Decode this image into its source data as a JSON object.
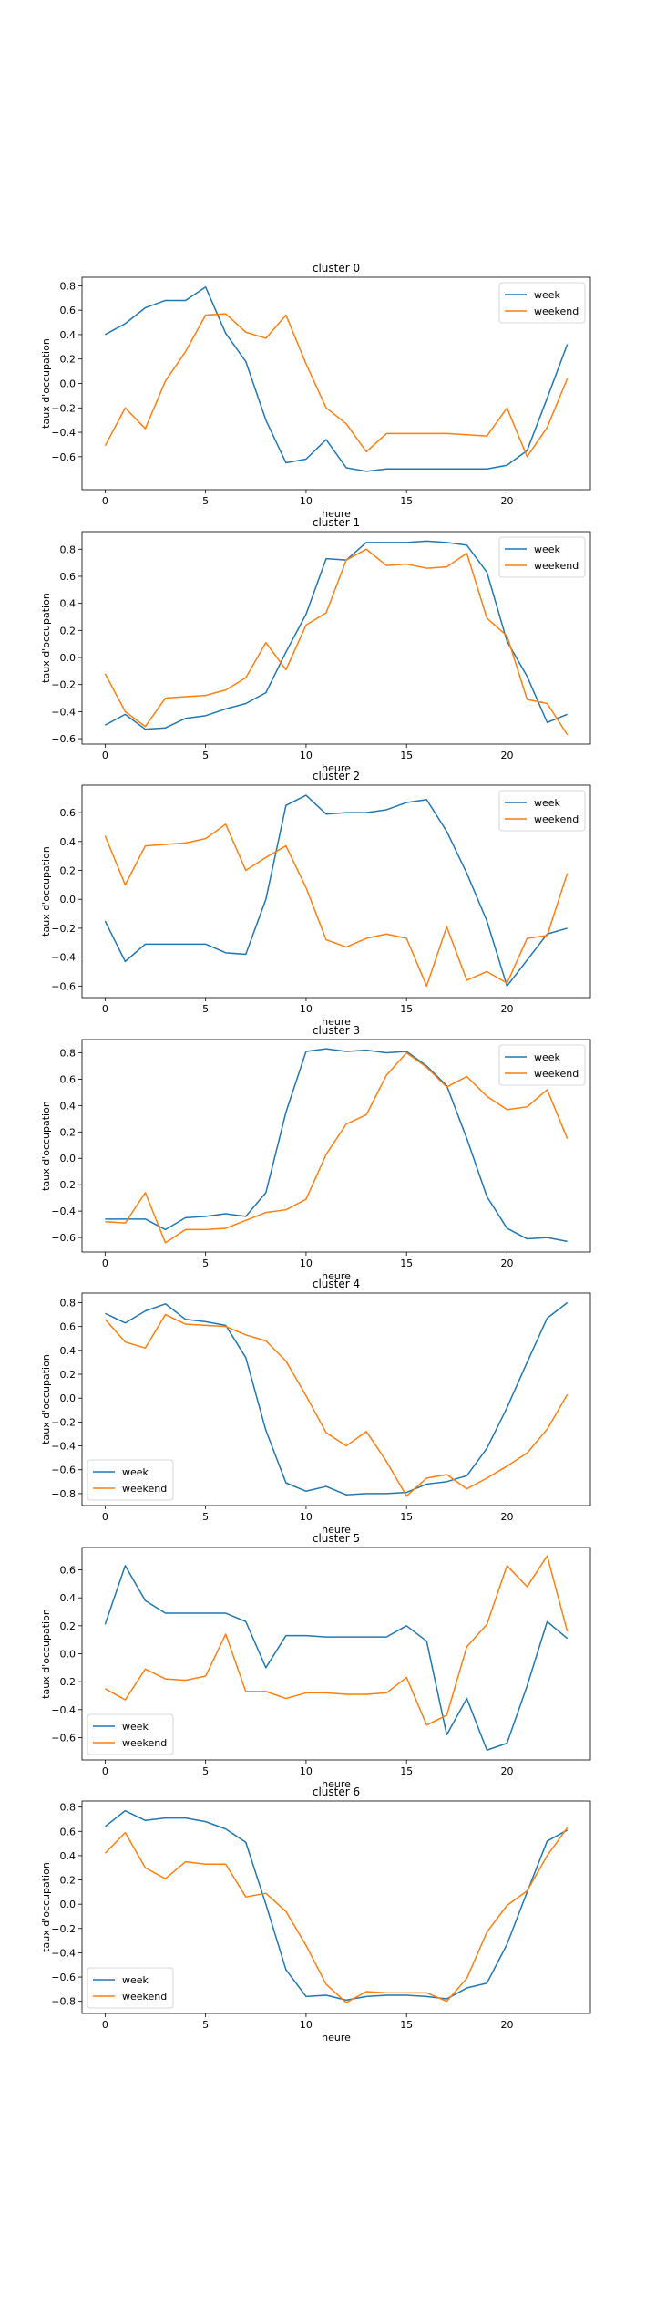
{
  "figure": {
    "background": "#ffffff"
  },
  "chart_data": [
    {
      "type": "line",
      "title": "cluster 0",
      "xlabel": "heure",
      "ylabel": "taux d'occupation",
      "x": [
        0,
        1,
        2,
        3,
        4,
        5,
        6,
        7,
        8,
        9,
        10,
        11,
        12,
        13,
        14,
        15,
        16,
        17,
        18,
        19,
        20,
        21,
        22,
        23
      ],
      "xlim": [
        -1.15,
        24.15
      ],
      "ylim": [
        -0.87,
        0.87
      ],
      "xticks": [
        0,
        5,
        10,
        15,
        20
      ],
      "yticks": [
        -0.6,
        -0.4,
        -0.2,
        0.0,
        0.2,
        0.4,
        0.6,
        0.8
      ],
      "ytick_labels": [
        "−0.6",
        "−0.4",
        "−0.2",
        "0.0",
        "0.2",
        "0.4",
        "0.6",
        "0.8"
      ],
      "legend": "upper right",
      "grid": false,
      "series": [
        {
          "name": "week",
          "color": "#1f77b4",
          "values": [
            0.4,
            0.49,
            0.62,
            0.68,
            0.68,
            0.79,
            0.41,
            0.18,
            -0.3,
            -0.65,
            -0.62,
            -0.46,
            -0.69,
            -0.72,
            -0.7,
            -0.7,
            -0.7,
            -0.7,
            -0.7,
            -0.7,
            -0.67,
            -0.55,
            -0.12,
            0.32
          ]
        },
        {
          "name": "weekend",
          "color": "#ff7f0e",
          "values": [
            -0.51,
            -0.2,
            -0.37,
            0.02,
            0.26,
            0.56,
            0.57,
            0.42,
            0.37,
            0.56,
            0.16,
            -0.2,
            -0.33,
            -0.56,
            -0.41,
            -0.41,
            -0.41,
            -0.41,
            -0.42,
            -0.43,
            -0.2,
            -0.6,
            -0.36,
            0.04
          ]
        }
      ]
    },
    {
      "type": "line",
      "title": "cluster 1",
      "xlabel": "heure",
      "ylabel": "taux d'occupation",
      "x": [
        0,
        1,
        2,
        3,
        4,
        5,
        6,
        7,
        8,
        9,
        10,
        11,
        12,
        13,
        14,
        15,
        16,
        17,
        18,
        19,
        20,
        21,
        22,
        23
      ],
      "xlim": [
        -1.15,
        24.15
      ],
      "ylim": [
        -0.64,
        0.93
      ],
      "xticks": [
        0,
        5,
        10,
        15,
        20
      ],
      "yticks": [
        -0.6,
        -0.4,
        -0.2,
        0.0,
        0.2,
        0.4,
        0.6,
        0.8
      ],
      "ytick_labels": [
        "−0.6",
        "−0.4",
        "−0.2",
        "0.0",
        "0.2",
        "0.4",
        "0.6",
        "0.8"
      ],
      "legend": "upper right",
      "grid": false,
      "series": [
        {
          "name": "week",
          "color": "#1f77b4",
          "values": [
            -0.5,
            -0.42,
            -0.53,
            -0.52,
            -0.45,
            -0.43,
            -0.38,
            -0.34,
            -0.26,
            0.04,
            0.32,
            0.73,
            0.72,
            0.85,
            0.85,
            0.85,
            0.86,
            0.85,
            0.83,
            0.63,
            0.12,
            -0.14,
            -0.48,
            -0.42
          ]
        },
        {
          "name": "weekend",
          "color": "#ff7f0e",
          "values": [
            -0.12,
            -0.4,
            -0.51,
            -0.3,
            -0.29,
            -0.28,
            -0.24,
            -0.15,
            0.11,
            -0.09,
            0.24,
            0.33,
            0.72,
            0.8,
            0.68,
            0.69,
            0.66,
            0.67,
            0.77,
            0.29,
            0.16,
            -0.31,
            -0.34,
            -0.57
          ]
        }
      ]
    },
    {
      "type": "line",
      "title": "cluster 2",
      "xlabel": "heure",
      "ylabel": "taux d'occupation",
      "x": [
        0,
        1,
        2,
        3,
        4,
        5,
        6,
        7,
        8,
        9,
        10,
        11,
        12,
        13,
        14,
        15,
        16,
        17,
        18,
        19,
        20,
        21,
        22,
        23
      ],
      "xlim": [
        -1.15,
        24.15
      ],
      "ylim": [
        -0.68,
        0.79
      ],
      "xticks": [
        0,
        5,
        10,
        15,
        20
      ],
      "yticks": [
        -0.6,
        -0.4,
        -0.2,
        0.0,
        0.2,
        0.4,
        0.6
      ],
      "ytick_labels": [
        "−0.6",
        "−0.4",
        "−0.2",
        "0.0",
        "0.2",
        "0.4",
        "0.6"
      ],
      "legend": "upper right",
      "grid": false,
      "series": [
        {
          "name": "week",
          "color": "#1f77b4",
          "values": [
            -0.15,
            -0.43,
            -0.31,
            -0.31,
            -0.31,
            -0.31,
            -0.37,
            -0.38,
            0.0,
            0.65,
            0.72,
            0.59,
            0.6,
            0.6,
            0.62,
            0.67,
            0.69,
            0.47,
            0.18,
            -0.15,
            -0.6,
            -0.42,
            -0.24,
            -0.2
          ]
        },
        {
          "name": "weekend",
          "color": "#ff7f0e",
          "values": [
            0.44,
            0.1,
            0.37,
            0.38,
            0.39,
            0.42,
            0.52,
            0.2,
            0.29,
            0.37,
            0.08,
            -0.28,
            -0.33,
            -0.27,
            -0.24,
            -0.27,
            -0.6,
            -0.19,
            -0.56,
            -0.5,
            -0.58,
            -0.27,
            -0.25,
            0.18
          ]
        }
      ]
    },
    {
      "type": "line",
      "title": "cluster 3",
      "xlabel": "heure",
      "ylabel": "taux d'occupation",
      "x": [
        0,
        1,
        2,
        3,
        4,
        5,
        6,
        7,
        8,
        9,
        10,
        11,
        12,
        13,
        14,
        15,
        16,
        17,
        18,
        19,
        20,
        21,
        22,
        23
      ],
      "xlim": [
        -1.15,
        24.15
      ],
      "ylim": [
        -0.71,
        0.9
      ],
      "xticks": [
        0,
        5,
        10,
        15,
        20
      ],
      "yticks": [
        -0.6,
        -0.4,
        -0.2,
        0.0,
        0.2,
        0.4,
        0.6,
        0.8
      ],
      "ytick_labels": [
        "−0.6",
        "−0.4",
        "−0.2",
        "0.0",
        "0.2",
        "0.4",
        "0.6",
        "0.8"
      ],
      "legend": "upper right",
      "grid": false,
      "series": [
        {
          "name": "week",
          "color": "#1f77b4",
          "values": [
            -0.46,
            -0.46,
            -0.46,
            -0.54,
            -0.45,
            -0.44,
            -0.42,
            -0.44,
            -0.26,
            0.35,
            0.81,
            0.83,
            0.81,
            0.82,
            0.8,
            0.81,
            0.7,
            0.55,
            0.15,
            -0.29,
            -0.53,
            -0.61,
            -0.6,
            -0.63
          ]
        },
        {
          "name": "weekend",
          "color": "#ff7f0e",
          "values": [
            -0.48,
            -0.49,
            -0.26,
            -0.64,
            -0.54,
            -0.54,
            -0.53,
            -0.47,
            -0.41,
            -0.39,
            -0.31,
            0.03,
            0.26,
            0.33,
            0.63,
            0.8,
            0.69,
            0.54,
            0.62,
            0.47,
            0.37,
            0.39,
            0.52,
            0.15
          ]
        }
      ]
    },
    {
      "type": "line",
      "title": "cluster 4",
      "xlabel": "heure",
      "ylabel": "taux d'occupation",
      "x": [
        0,
        1,
        2,
        3,
        4,
        5,
        6,
        7,
        8,
        9,
        10,
        11,
        12,
        13,
        14,
        15,
        16,
        17,
        18,
        19,
        20,
        21,
        22,
        23
      ],
      "xlim": [
        -1.15,
        24.15
      ],
      "ylim": [
        -0.9,
        0.88
      ],
      "xticks": [
        0,
        5,
        10,
        15,
        20
      ],
      "yticks": [
        -0.8,
        -0.6,
        -0.4,
        -0.2,
        0.0,
        0.2,
        0.4,
        0.6,
        0.8
      ],
      "ytick_labels": [
        "−0.8",
        "−0.6",
        "−0.4",
        "−0.2",
        "0.0",
        "0.2",
        "0.4",
        "0.6",
        "0.8"
      ],
      "legend": "lower left",
      "grid": false,
      "series": [
        {
          "name": "week",
          "color": "#1f77b4",
          "values": [
            0.71,
            0.63,
            0.73,
            0.79,
            0.66,
            0.64,
            0.61,
            0.34,
            -0.27,
            -0.71,
            -0.78,
            -0.74,
            -0.81,
            -0.8,
            -0.8,
            -0.79,
            -0.72,
            -0.7,
            -0.65,
            -0.42,
            -0.08,
            0.3,
            0.67,
            0.8
          ]
        },
        {
          "name": "weekend",
          "color": "#ff7f0e",
          "values": [
            0.66,
            0.47,
            0.42,
            0.7,
            0.62,
            0.61,
            0.6,
            0.53,
            0.48,
            0.31,
            0.02,
            -0.29,
            -0.4,
            -0.28,
            -0.53,
            -0.82,
            -0.67,
            -0.64,
            -0.76,
            -0.67,
            -0.57,
            -0.46,
            -0.26,
            0.03
          ]
        }
      ]
    },
    {
      "type": "line",
      "title": "cluster 5",
      "xlabel": "heure",
      "ylabel": "taux d'occupation",
      "x": [
        0,
        1,
        2,
        3,
        4,
        5,
        6,
        7,
        8,
        9,
        10,
        11,
        12,
        13,
        14,
        15,
        16,
        17,
        18,
        19,
        20,
        21,
        22,
        23
      ],
      "xlim": [
        -1.15,
        24.15
      ],
      "ylim": [
        -0.76,
        0.76
      ],
      "xticks": [
        0,
        5,
        10,
        15,
        20
      ],
      "yticks": [
        -0.6,
        -0.4,
        -0.2,
        0.0,
        0.2,
        0.4,
        0.6
      ],
      "ytick_labels": [
        "−0.6",
        "−0.4",
        "−0.2",
        "0.0",
        "0.2",
        "0.4",
        "0.6"
      ],
      "legend": "lower left",
      "grid": false,
      "series": [
        {
          "name": "week",
          "color": "#1f77b4",
          "values": [
            0.21,
            0.63,
            0.38,
            0.29,
            0.29,
            0.29,
            0.29,
            0.23,
            -0.1,
            0.13,
            0.13,
            0.12,
            0.12,
            0.12,
            0.12,
            0.2,
            0.09,
            -0.58,
            -0.32,
            -0.69,
            -0.64,
            -0.23,
            0.23,
            0.11
          ]
        },
        {
          "name": "weekend",
          "color": "#ff7f0e",
          "values": [
            -0.25,
            -0.33,
            -0.11,
            -0.18,
            -0.19,
            -0.16,
            0.14,
            -0.27,
            -0.27,
            -0.32,
            -0.28,
            -0.28,
            -0.29,
            -0.29,
            -0.28,
            -0.17,
            -0.51,
            -0.44,
            0.05,
            0.21,
            0.63,
            0.48,
            0.7,
            0.16
          ]
        }
      ]
    },
    {
      "type": "line",
      "title": "cluster 6",
      "xlabel": "heure",
      "ylabel": "taux d'occupation",
      "x": [
        0,
        1,
        2,
        3,
        4,
        5,
        6,
        7,
        8,
        9,
        10,
        11,
        12,
        13,
        14,
        15,
        16,
        17,
        18,
        19,
        20,
        21,
        22,
        23
      ],
      "xlim": [
        -1.15,
        24.15
      ],
      "ylim": [
        -0.9,
        0.85
      ],
      "xticks": [
        0,
        5,
        10,
        15,
        20
      ],
      "yticks": [
        -0.8,
        -0.6,
        -0.4,
        -0.2,
        0.0,
        0.2,
        0.4,
        0.6,
        0.8
      ],
      "ytick_labels": [
        "−0.8",
        "−0.6",
        "−0.4",
        "−0.2",
        "0.0",
        "0.2",
        "0.4",
        "0.6",
        "0.8"
      ],
      "legend": "lower left",
      "grid": false,
      "series": [
        {
          "name": "week",
          "color": "#1f77b4",
          "values": [
            0.64,
            0.77,
            0.69,
            0.71,
            0.71,
            0.68,
            0.62,
            0.51,
            0.0,
            -0.54,
            -0.76,
            -0.75,
            -0.79,
            -0.76,
            -0.75,
            -0.75,
            -0.76,
            -0.78,
            -0.69,
            -0.65,
            -0.33,
            0.1,
            0.52,
            0.61
          ]
        },
        {
          "name": "weekend",
          "color": "#ff7f0e",
          "values": [
            0.42,
            0.59,
            0.3,
            0.21,
            0.35,
            0.33,
            0.33,
            0.06,
            0.09,
            -0.06,
            -0.34,
            -0.66,
            -0.81,
            -0.72,
            -0.73,
            -0.73,
            -0.73,
            -0.8,
            -0.61,
            -0.23,
            -0.01,
            0.11,
            0.4,
            0.63
          ]
        }
      ]
    }
  ]
}
